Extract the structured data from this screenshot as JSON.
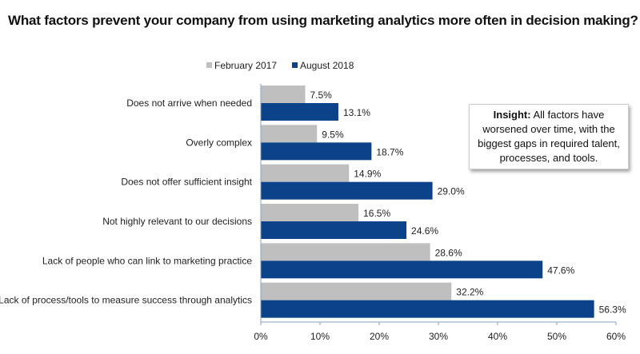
{
  "chart_data": {
    "type": "bar",
    "orientation": "horizontal",
    "title": "What factors prevent your company from using marketing analytics more often in decision making?",
    "categories": [
      "Does not arrive when needed",
      "Overly complex",
      "Does not offer sufficient insight",
      "Not highly relevant to our decisions",
      "Lack of people who can link to marketing practice",
      "Lack of process/tools to measure success through analytics"
    ],
    "series": [
      {
        "name": "February 2017",
        "color": "#bfbfbf",
        "values": [
          7.5,
          9.5,
          14.9,
          16.5,
          28.6,
          32.2
        ],
        "labels": [
          "7.5%",
          "9.5%",
          "14.9%",
          "16.5%",
          "28.6%",
          "32.2%"
        ]
      },
      {
        "name": "August 2018",
        "color": "#0b4289",
        "values": [
          13.1,
          18.7,
          29.0,
          24.6,
          47.6,
          56.3
        ],
        "labels": [
          "13.1%",
          "18.7%",
          "29.0%",
          "24.6%",
          "47.6%",
          "56.3%"
        ]
      }
    ],
    "xlim": [
      0,
      60
    ],
    "xticks": [
      "0%",
      "10%",
      "20%",
      "30%",
      "40%",
      "50%",
      "60%"
    ],
    "grid": false,
    "legend": "top"
  },
  "insight": {
    "label": "Insight:",
    "text": "All factors have worsened over time, with the biggest gaps in required talent, processes, and tools."
  }
}
